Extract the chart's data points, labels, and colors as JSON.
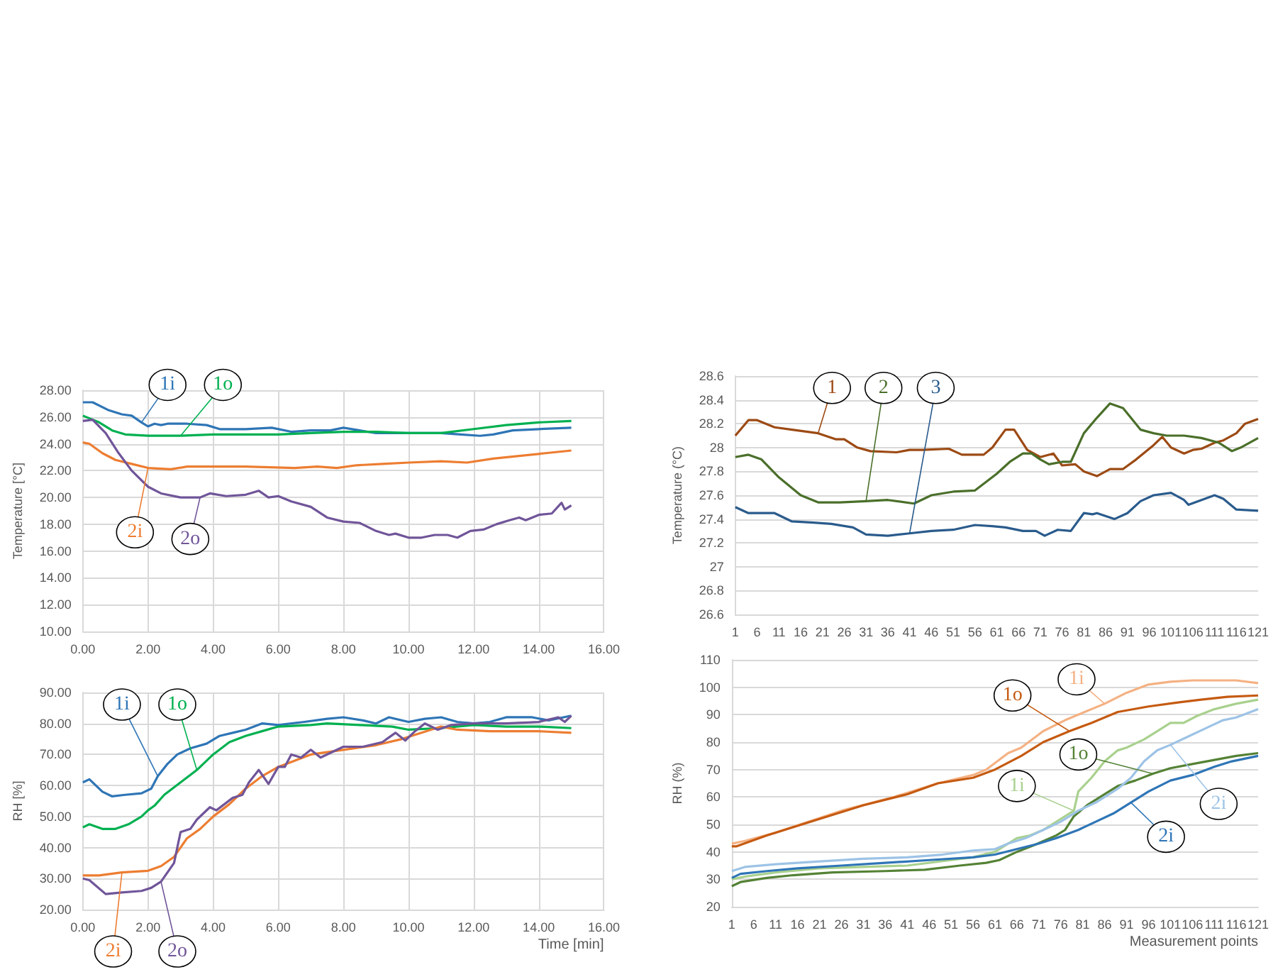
{
  "chart_data": [
    {
      "type": "line",
      "ylabel": "Temperature [°C]",
      "grid": true,
      "xlim": [
        0,
        16
      ],
      "xticks": [
        {
          "value": 0,
          "label": "0.00"
        },
        {
          "value": 2,
          "label": "2.00"
        },
        {
          "value": 4,
          "label": "4.00"
        },
        {
          "value": 6,
          "label": "6.00"
        },
        {
          "value": 8,
          "label": "8.00"
        },
        {
          "value": 10,
          "label": "10.00"
        },
        {
          "value": 12,
          "label": "12.00"
        },
        {
          "value": 14,
          "label": "14.00"
        },
        {
          "value": 16,
          "label": "16.00"
        }
      ],
      "ylim": [
        10,
        28
      ],
      "yticks": [
        {
          "value": 10,
          "label": "10.00"
        },
        {
          "value": 12,
          "label": "12.00"
        },
        {
          "value": 14,
          "label": "14.00"
        },
        {
          "value": 16,
          "label": "16.00"
        },
        {
          "value": 18,
          "label": "18.00"
        },
        {
          "value": 20,
          "label": "20.00"
        },
        {
          "value": 22,
          "label": "22.00"
        },
        {
          "value": 24,
          "label": "24.00"
        },
        {
          "value": 26,
          "label": "26.00"
        },
        {
          "value": 28,
          "label": "28.00"
        }
      ],
      "series": [
        {
          "name": "1i",
          "color": "#2e75b6",
          "x": [
            0,
            0.3,
            0.8,
            1.2,
            1.5,
            1.8,
            2.0,
            2.2,
            2.4,
            2.6,
            3.2,
            3.8,
            4.2,
            5,
            5.8,
            6.4,
            7,
            7.6,
            8,
            8.5,
            9,
            9.5,
            10,
            11,
            11.6,
            12.2,
            12.6,
            13.2,
            14,
            15
          ],
          "values": [
            27.1,
            27.1,
            26.5,
            26.2,
            26.1,
            25.6,
            25.3,
            25.5,
            25.4,
            25.5,
            25.5,
            25.4,
            25.1,
            25.1,
            25.2,
            24.9,
            25.0,
            25.0,
            25.2,
            25.0,
            24.8,
            24.8,
            24.8,
            24.8,
            24.7,
            24.6,
            24.7,
            25.0,
            25.1,
            25.2
          ]
        },
        {
          "name": "1o",
          "color": "#00b050",
          "x": [
            0,
            0.5,
            0.9,
            1.3,
            2,
            3,
            4,
            5,
            6,
            7,
            8,
            9,
            10,
            11,
            12,
            13,
            14,
            15
          ],
          "values": [
            26.1,
            25.6,
            25.0,
            24.7,
            24.6,
            24.6,
            24.7,
            24.7,
            24.7,
            24.8,
            24.9,
            24.9,
            24.8,
            24.8,
            25.1,
            25.4,
            25.6,
            25.7
          ]
        },
        {
          "name": "2i",
          "color": "#ed7d31",
          "x": [
            0,
            0.2,
            0.6,
            1.0,
            1.5,
            2,
            2.7,
            3.2,
            4,
            5,
            6.5,
            7.2,
            7.8,
            8.4,
            9.2,
            10,
            11,
            11.8,
            12.6,
            13.4,
            14.2,
            15
          ],
          "values": [
            24.1,
            24.0,
            23.3,
            22.8,
            22.5,
            22.2,
            22.1,
            22.3,
            22.3,
            22.3,
            22.2,
            22.3,
            22.2,
            22.4,
            22.5,
            22.6,
            22.7,
            22.6,
            22.9,
            23.1,
            23.3,
            23.5
          ]
        },
        {
          "name": "2o",
          "color": "#705599",
          "x": [
            0,
            0.3,
            0.7,
            1.1,
            1.5,
            2.0,
            2.4,
            3,
            3.6,
            3.9,
            4.4,
            5,
            5.4,
            5.7,
            6,
            6.4,
            7,
            7.5,
            8,
            8.5,
            9,
            9.4,
            9.6,
            10,
            10.4,
            10.8,
            11.2,
            11.5,
            11.9,
            12.3,
            12.7,
            13.1,
            13.4,
            13.6,
            14,
            14.4,
            14.7,
            14.8,
            15
          ],
          "values": [
            25.7,
            25.8,
            24.8,
            23.3,
            22.0,
            20.8,
            20.3,
            20.0,
            20.0,
            20.3,
            20.1,
            20.2,
            20.5,
            20.0,
            20.1,
            19.7,
            19.3,
            18.5,
            18.2,
            18.1,
            17.5,
            17.2,
            17.3,
            17.0,
            17.0,
            17.2,
            17.2,
            17.0,
            17.5,
            17.6,
            18.0,
            18.3,
            18.5,
            18.3,
            18.7,
            18.8,
            19.6,
            19.1,
            19.4
          ]
        }
      ]
    },
    {
      "type": "line",
      "ylabel": "RH [%]",
      "xlabel": "Time [min]",
      "grid": true,
      "xlim": [
        0,
        16
      ],
      "xticks": [
        {
          "value": 0,
          "label": "0.00"
        },
        {
          "value": 2,
          "label": "2.00"
        },
        {
          "value": 4,
          "label": "4.00"
        },
        {
          "value": 6,
          "label": "6.00"
        },
        {
          "value": 8,
          "label": "8.00"
        },
        {
          "value": 10,
          "label": "10.00"
        },
        {
          "value": 12,
          "label": "12.00"
        },
        {
          "value": 14,
          "label": "14.00"
        },
        {
          "value": 16,
          "label": "16.00"
        }
      ],
      "ylim": [
        20,
        90
      ],
      "yticks": [
        {
          "value": 20,
          "label": "20.00"
        },
        {
          "value": 30,
          "label": "30.00"
        },
        {
          "value": 40,
          "label": "40.00"
        },
        {
          "value": 50,
          "label": "50.00"
        },
        {
          "value": 60,
          "label": "60.00"
        },
        {
          "value": 70,
          "label": "70.00"
        },
        {
          "value": 80,
          "label": "80.00"
        },
        {
          "value": 90,
          "label": "90.00"
        }
      ],
      "series": [
        {
          "name": "1i",
          "color": "#2e75b6",
          "x": [
            0,
            0.2,
            0.6,
            0.9,
            1.3,
            1.8,
            2.1,
            2.3,
            2.6,
            2.9,
            3.3,
            3.8,
            4.2,
            4.6,
            5,
            5.5,
            6,
            6.8,
            7.5,
            8,
            8.6,
            9,
            9.4,
            10,
            10.5,
            11,
            11.5,
            12,
            12.5,
            13,
            13.8,
            14.3,
            15
          ],
          "values": [
            61,
            62,
            58,
            56.5,
            57,
            57.5,
            59,
            63,
            67,
            70,
            72,
            73.5,
            76,
            77,
            78,
            80,
            79.5,
            80.5,
            81.5,
            82,
            81,
            80,
            82,
            80.5,
            81.5,
            82,
            80.5,
            80,
            80.5,
            82,
            82,
            81,
            82.5
          ]
        },
        {
          "name": "1o",
          "color": "#00b050",
          "x": [
            0,
            0.2,
            0.6,
            1.0,
            1.4,
            1.8,
            2.0,
            2.2,
            2.5,
            3,
            3.5,
            4.0,
            4.5,
            5,
            5.5,
            6,
            7,
            7.5,
            8.5,
            9.5,
            10,
            11,
            12,
            13,
            14,
            15
          ],
          "values": [
            46.5,
            47.5,
            46,
            46,
            47.5,
            50,
            52,
            53.5,
            57,
            61,
            65,
            70,
            74,
            76,
            77.5,
            79,
            79.5,
            80,
            79.5,
            79,
            78,
            78.5,
            79.5,
            79,
            79,
            78.5
          ]
        },
        {
          "name": "2i",
          "color": "#ed7d31",
          "x": [
            0,
            0.5,
            1.2,
            2,
            2.4,
            2.8,
            3.2,
            3.6,
            4.0,
            4.5,
            5,
            5.5,
            6,
            6.5,
            7,
            8,
            9,
            9.8,
            10.4,
            11,
            11.5,
            12.5,
            14,
            15
          ],
          "values": [
            31,
            31,
            32,
            32.5,
            34,
            37,
            43,
            46,
            50,
            54,
            59,
            63,
            66,
            68,
            70,
            71.5,
            73,
            75,
            77,
            79,
            78,
            77.5,
            77.5,
            77
          ]
        },
        {
          "name": "2o",
          "color": "#705599",
          "x": [
            0,
            0.2,
            0.7,
            1.2,
            1.8,
            2.1,
            2.4,
            2.8,
            3.0,
            3.3,
            3.5,
            3.9,
            4.1,
            4.6,
            4.9,
            5.1,
            5.4,
            5.7,
            6,
            6.2,
            6.4,
            6.7,
            7,
            7.3,
            7.7,
            8,
            8.6,
            9.2,
            9.4,
            9.6,
            9.9,
            10.2,
            10.5,
            10.9,
            11.3,
            12,
            13,
            14,
            14.6,
            14.8,
            15
          ],
          "values": [
            30,
            29.5,
            25,
            25.5,
            26,
            27,
            29,
            35,
            45,
            46,
            49,
            53,
            52,
            56,
            57,
            61,
            65,
            60.5,
            66,
            66,
            70,
            69,
            71.5,
            69,
            71,
            72.5,
            72.5,
            74,
            75.5,
            77,
            74.5,
            77.5,
            80,
            78,
            79.5,
            80,
            80,
            80.5,
            82,
            80.5,
            82.5
          ]
        }
      ]
    },
    {
      "type": "line",
      "ylabel": "Temperature (°C)",
      "grid": "y",
      "xlim": [
        1,
        121
      ],
      "xticks": [
        1,
        6,
        11,
        16,
        21,
        26,
        31,
        36,
        41,
        46,
        51,
        56,
        61,
        66,
        71,
        76,
        81,
        86,
        91,
        96,
        101,
        106,
        111,
        116,
        121
      ],
      "ylim": [
        26.6,
        28.6
      ],
      "yticks": [
        26.6,
        26.8,
        27,
        27.2,
        27.4,
        27.6,
        27.8,
        28,
        28.2,
        28.4,
        28.6
      ],
      "series": [
        {
          "name": "1",
          "color": "#9c4a14",
          "x": [
            1,
            4,
            6,
            10,
            14,
            20,
            24,
            26,
            29,
            32,
            38,
            41,
            44,
            50,
            53,
            58,
            60,
            63,
            65,
            68,
            71,
            74,
            76,
            79,
            81,
            84,
            87,
            90,
            93,
            97,
            99,
            101,
            104,
            106,
            108,
            111,
            113,
            116,
            118,
            121
          ],
          "values": [
            28.1,
            28.23,
            28.23,
            28.17,
            28.15,
            28.12,
            28.07,
            28.07,
            28.0,
            27.97,
            27.96,
            27.98,
            27.98,
            27.99,
            27.94,
            27.94,
            28.0,
            28.15,
            28.15,
            27.98,
            27.92,
            27.95,
            27.85,
            27.86,
            27.8,
            27.76,
            27.82,
            27.82,
            27.9,
            28.02,
            28.09,
            28.0,
            27.95,
            27.98,
            27.99,
            28.04,
            28.06,
            28.12,
            28.2,
            28.24
          ]
        },
        {
          "name": "2",
          "color": "#4a6f2a",
          "x": [
            1,
            4,
            7,
            11,
            16,
            20,
            25,
            31,
            36,
            42,
            46,
            51,
            56,
            61,
            64,
            67,
            69,
            71,
            73,
            76,
            78,
            81,
            84,
            87,
            90,
            94,
            97,
            100,
            104,
            108,
            112,
            115,
            117,
            121
          ],
          "values": [
            27.92,
            27.94,
            27.9,
            27.75,
            27.6,
            27.54,
            27.54,
            27.55,
            27.56,
            27.53,
            27.6,
            27.63,
            27.64,
            27.78,
            27.88,
            27.95,
            27.95,
            27.9,
            27.86,
            27.88,
            27.88,
            28.12,
            28.25,
            28.37,
            28.33,
            28.15,
            28.12,
            28.1,
            28.1,
            28.08,
            28.04,
            27.97,
            28.0,
            28.08
          ]
        },
        {
          "name": "3",
          "color": "#2a5b8c",
          "x": [
            1,
            4,
            10,
            14,
            19,
            23,
            28,
            31,
            36,
            41,
            46,
            51,
            56,
            60,
            63,
            67,
            70,
            72,
            75,
            78,
            81,
            83,
            84,
            88,
            91,
            94,
            97,
            101,
            104,
            105,
            108,
            111,
            113,
            116,
            121
          ],
          "values": [
            27.5,
            27.45,
            27.45,
            27.38,
            27.37,
            27.36,
            27.33,
            27.27,
            27.26,
            27.28,
            27.3,
            27.31,
            27.35,
            27.34,
            27.33,
            27.3,
            27.3,
            27.26,
            27.31,
            27.3,
            27.45,
            27.44,
            27.45,
            27.4,
            27.45,
            27.55,
            27.6,
            27.62,
            27.56,
            27.52,
            27.56,
            27.6,
            27.57,
            27.48,
            27.47
          ]
        }
      ]
    },
    {
      "type": "line",
      "ylabel": "RH (%)",
      "xlabel": "Measurement points",
      "grid": "y",
      "xlim": [
        1,
        121
      ],
      "xticks": [
        1,
        6,
        11,
        16,
        21,
        26,
        31,
        36,
        41,
        46,
        51,
        56,
        61,
        66,
        71,
        76,
        81,
        86,
        91,
        96,
        101,
        106,
        111,
        116,
        121
      ],
      "ylim": [
        20,
        110
      ],
      "yticks": [
        20,
        30,
        40,
        50,
        60,
        70,
        80,
        90,
        100,
        110
      ],
      "series": [
        {
          "name": "1i",
          "color": "#f4b183",
          "x": [
            1,
            4,
            11,
            26,
            38,
            48,
            56,
            59,
            64,
            67,
            72,
            77,
            80,
            86,
            91,
            96,
            101,
            106,
            116,
            121
          ],
          "values": [
            43,
            44,
            47,
            55,
            60,
            65,
            68,
            70,
            76,
            78,
            84,
            88,
            90,
            94,
            98,
            101,
            102,
            102.5,
            102.5,
            101.5
          ]
        },
        {
          "name": "1o",
          "color": "#c55a11",
          "x": [
            1,
            2,
            9,
            21,
            31,
            41,
            48,
            56,
            61,
            67,
            72,
            78,
            83,
            89,
            96,
            103,
            108,
            114,
            121
          ],
          "values": [
            42,
            42,
            46,
            52,
            57,
            61,
            65,
            67,
            70,
            75,
            80,
            84,
            87,
            91,
            93,
            94.5,
            95.5,
            96.5,
            97
          ]
        },
        {
          "name": "1i",
          "color": "#a9d18e",
          "x": [
            1,
            4,
            11,
            21,
            31,
            41,
            51,
            56,
            61,
            66,
            69,
            72,
            76,
            79,
            80,
            83,
            86,
            89,
            91,
            95,
            98,
            101,
            104,
            107,
            111,
            116,
            121
          ],
          "values": [
            30,
            31,
            32.5,
            34,
            34.5,
            35,
            37,
            38,
            40,
            45,
            46,
            48,
            52,
            55,
            62,
            67,
            73,
            77,
            78,
            81,
            84,
            87,
            87,
            89.5,
            92,
            94,
            95.5
          ]
        },
        {
          "name": "1o",
          "color": "#548235",
          "x": [
            1,
            3,
            9,
            15,
            24,
            36,
            45,
            53,
            59,
            62,
            66,
            70,
            75,
            77,
            79,
            82,
            86,
            89,
            93,
            97,
            101,
            106,
            111,
            116,
            121
          ],
          "values": [
            27.5,
            29,
            30.5,
            31.5,
            32.5,
            33,
            33.5,
            35,
            36,
            37,
            40,
            42.5,
            46,
            48,
            53,
            57,
            61,
            64,
            66,
            68.5,
            70.5,
            72,
            73.5,
            75,
            76
          ]
        },
        {
          "name": "2i",
          "color": "#9dc3e6",
          "x": [
            1,
            4,
            11,
            21,
            31,
            41,
            49,
            56,
            61,
            64,
            68,
            72,
            76,
            80,
            84,
            89,
            92,
            95,
            98,
            101,
            105,
            109,
            113,
            116,
            121
          ],
          "values": [
            33,
            34.5,
            35.5,
            36.5,
            37.5,
            38,
            39,
            40.5,
            41,
            43,
            45,
            48,
            51,
            55,
            58,
            63,
            67,
            73,
            77,
            79,
            82,
            85,
            88,
            89,
            92
          ]
        },
        {
          "name": "2i",
          "color": "#2e75b6",
          "x": [
            1,
            3,
            9,
            16,
            26,
            36,
            46,
            56,
            61,
            66,
            71,
            75,
            80,
            84,
            88,
            92,
            96,
            101,
            106,
            111,
            115,
            121
          ],
          "values": [
            30.5,
            32,
            33,
            34,
            35,
            36,
            37,
            38,
            39,
            41,
            43,
            45,
            48,
            51,
            54,
            58,
            62,
            66,
            68,
            71,
            73,
            75
          ]
        }
      ]
    }
  ]
}
